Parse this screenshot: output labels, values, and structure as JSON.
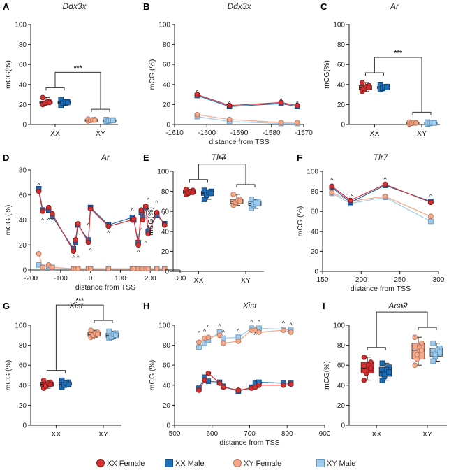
{
  "colors": {
    "xx_female": "#d32f2f",
    "xx_male": "#1e6eb8",
    "xy_female": "#f2a98a",
    "xy_male": "#9fcbec",
    "axis": "#222222"
  },
  "legend": {
    "entries": [
      {
        "label": "XX Female",
        "shape": "circle",
        "color": "#d32f2f"
      },
      {
        "label": "XX Male",
        "shape": "square",
        "color": "#1e6eb8"
      },
      {
        "label": "XY Female",
        "shape": "circle",
        "color": "#f2a98a"
      },
      {
        "label": "XY Male",
        "shape": "square",
        "color": "#9fcbec"
      }
    ]
  },
  "chart_data": [
    {
      "id": "A",
      "panel_label": "A",
      "type": "box",
      "title": "Ddx3x",
      "ylabel": "mCG(%)",
      "xlabel": "",
      "ylim": [
        0,
        100
      ],
      "yticks": [
        0,
        20,
        40,
        60,
        80,
        100
      ],
      "categories": [
        "XX",
        "XY"
      ],
      "groups": [
        {
          "cat": "XX",
          "series": "xx_female",
          "median": 22,
          "q1": 21,
          "q3": 23,
          "min": 20,
          "max": 27
        },
        {
          "cat": "XX",
          "series": "xx_male",
          "median": 22,
          "q1": 21,
          "q3": 23,
          "min": 19,
          "max": 25
        },
        {
          "cat": "XY",
          "series": "xy_female",
          "median": 4.5,
          "q1": 4,
          "q3": 5,
          "min": 3.5,
          "max": 5.5
        },
        {
          "cat": "XY",
          "series": "xy_male",
          "median": 4,
          "q1": 3.5,
          "q3": 4.5,
          "min": 3,
          "max": 5
        }
      ],
      "significance": "***"
    },
    {
      "id": "B",
      "panel_label": "B",
      "type": "line",
      "title": "Ddx3x",
      "ylabel": "mCG (%)",
      "xlabel": "distance from TSS",
      "xlim": [
        -1610,
        -1570
      ],
      "xticks": [
        -1610,
        -1600,
        -1590,
        -1580,
        -1570
      ],
      "ylim": [
        0,
        100
      ],
      "yticks": [
        0,
        20,
        40,
        60,
        80,
        100
      ],
      "x": [
        -1603,
        -1593,
        -1577,
        -1572
      ],
      "series": [
        {
          "name": "XX Female",
          "key": "xx_female",
          "values": [
            30,
            19,
            22,
            19
          ]
        },
        {
          "name": "XX Male",
          "key": "xx_male",
          "values": [
            29,
            18,
            21,
            18
          ]
        },
        {
          "name": "XY Female",
          "key": "xy_female",
          "values": [
            10,
            5,
            2,
            2
          ]
        },
        {
          "name": "XY Male",
          "key": "xy_male",
          "values": [
            8,
            3,
            1,
            1
          ]
        }
      ],
      "markers": [
        {
          "x": -1603,
          "y": 30
        },
        {
          "x": -1593,
          "y": 19
        },
        {
          "x": -1577,
          "y": 22
        },
        {
          "x": -1572,
          "y": 19
        }
      ],
      "marker_symbol": "^"
    },
    {
      "id": "C",
      "panel_label": "C",
      "type": "box",
      "title": "Ar",
      "ylabel": "mCG(%)",
      "xlabel": "",
      "ylim": [
        0,
        100
      ],
      "yticks": [
        0,
        20,
        40,
        60,
        80,
        100
      ],
      "categories": [
        "XX",
        "XY"
      ],
      "groups": [
        {
          "cat": "XX",
          "series": "xx_female",
          "median": 37,
          "q1": 35,
          "q3": 39,
          "min": 33,
          "max": 42
        },
        {
          "cat": "XX",
          "series": "xx_male",
          "median": 37,
          "q1": 36,
          "q3": 38,
          "min": 35,
          "max": 40
        },
        {
          "cat": "XY",
          "series": "xy_female",
          "median": 1.5,
          "q1": 1,
          "q3": 2,
          "min": 0.5,
          "max": 2.5
        },
        {
          "cat": "XY",
          "series": "xy_male",
          "median": 1.5,
          "q1": 1,
          "q3": 2,
          "min": 0.5,
          "max": 2.5
        }
      ],
      "significance": "***"
    },
    {
      "id": "D",
      "panel_label": "D",
      "type": "line",
      "title": "Ar",
      "ylabel": "mCG (%)",
      "xlabel": "distance from TSS",
      "xlim": [
        -200,
        300
      ],
      "xticks": [
        -200,
        -100,
        0,
        100,
        200,
        300
      ],
      "ylim": [
        0,
        80
      ],
      "yticks": [
        0,
        20,
        40,
        60,
        80
      ],
      "x": [
        -173,
        -160,
        -140,
        -128,
        -57,
        -50,
        -42,
        -7,
        0,
        60,
        140,
        145,
        160,
        170,
        175,
        185,
        193,
        222,
        248
      ],
      "series": [
        {
          "name": "XX Female",
          "key": "xx_female",
          "values": [
            63,
            47,
            50,
            45,
            15,
            24,
            37,
            22,
            49,
            35,
            40,
            41,
            20,
            48,
            40,
            51,
            29,
            46,
            36
          ]
        },
        {
          "name": "XX Male",
          "key": "xx_male",
          "values": [
            65,
            48,
            48,
            43,
            17,
            22,
            36,
            24,
            50,
            36,
            42,
            40,
            22,
            46,
            42,
            50,
            31,
            44,
            37
          ]
        },
        {
          "name": "XY Female",
          "key": "xy_female",
          "values": [
            13,
            2,
            4,
            2,
            1,
            1,
            1,
            1,
            1,
            1,
            1,
            1,
            1,
            1,
            1,
            1,
            1,
            1,
            1
          ]
        },
        {
          "name": "XY Male",
          "key": "xy_male",
          "values": [
            4,
            2,
            3,
            2,
            1,
            1,
            1,
            1,
            1,
            1,
            1,
            1,
            1,
            1,
            1,
            1,
            1,
            1,
            1
          ]
        }
      ],
      "markers": [
        {
          "x": -173,
          "y": 66
        },
        {
          "x": -160,
          "y": 38
        },
        {
          "x": -140,
          "y": 38
        },
        {
          "x": -128,
          "y": 38
        },
        {
          "x": -57,
          "y": 8
        },
        {
          "x": -42,
          "y": 8
        },
        {
          "x": -7,
          "y": 34
        },
        {
          "x": 0,
          "y": 14
        },
        {
          "x": 60,
          "y": 28
        },
        {
          "x": 140,
          "y": 46
        },
        {
          "x": 160,
          "y": 13
        },
        {
          "x": 170,
          "y": 30
        },
        {
          "x": 185,
          "y": 20
        },
        {
          "x": 193,
          "y": 54
        },
        {
          "x": 222,
          "y": 52
        },
        {
          "x": 248,
          "y": 42
        }
      ],
      "marker_symbol": "^"
    },
    {
      "id": "E",
      "panel_label": "E",
      "type": "box",
      "title": "Tlr7",
      "ylabel": "mCG(%)",
      "xlabel": "",
      "ylim": [
        0,
        100
      ],
      "yticks": [
        0,
        20,
        40,
        60,
        80,
        100
      ],
      "categories": [
        "XX",
        "XY"
      ],
      "groups": [
        {
          "cat": "XX",
          "series": "xx_female",
          "median": 79,
          "q1": 78,
          "q3": 81,
          "min": 77,
          "max": 82
        },
        {
          "cat": "XX",
          "series": "xx_male",
          "median": 78,
          "q1": 76,
          "q3": 80,
          "min": 72,
          "max": 81
        },
        {
          "cat": "XY",
          "series": "xy_female",
          "median": 70,
          "q1": 68,
          "q3": 72,
          "min": 66,
          "max": 77
        },
        {
          "cat": "XY",
          "series": "xy_male",
          "median": 68,
          "q1": 66,
          "q3": 70,
          "min": 63,
          "max": 72
        }
      ],
      "significance": "***"
    },
    {
      "id": "F",
      "panel_label": "F",
      "type": "line",
      "title": "Tlr7",
      "ylabel": "mCG (%)",
      "xlabel": "distance from TSS",
      "xlim": [
        150,
        300
      ],
      "xticks": [
        150,
        200,
        250,
        300
      ],
      "ylim": [
        0,
        100
      ],
      "yticks": [
        0,
        20,
        40,
        60,
        80,
        100
      ],
      "x": [
        162,
        186,
        231,
        290
      ],
      "series": [
        {
          "name": "XX Female",
          "key": "xx_female",
          "values": [
            85,
            71,
            87,
            69
          ]
        },
        {
          "name": "XX Male",
          "key": "xx_male",
          "values": [
            84,
            69,
            86,
            70
          ]
        },
        {
          "name": "XY Female",
          "key": "xy_female",
          "values": [
            79,
            70,
            75,
            55
          ]
        },
        {
          "name": "XY Male",
          "key": "xy_male",
          "values": [
            78,
            68,
            74,
            50
          ]
        }
      ],
      "markers": [
        {
          "x": 162,
          "y": 89
        },
        {
          "x": 231,
          "y": 90
        },
        {
          "x": 290,
          "y": 73
        }
      ],
      "marker_symbol": "^",
      "annotations": [
        {
          "text": "n.s.",
          "x": 186,
          "y": 74
        }
      ]
    },
    {
      "id": "G",
      "panel_label": "G",
      "type": "box",
      "title": "Xist",
      "ylabel": "mCG (%)",
      "xlabel": "",
      "ylim": [
        0,
        100
      ],
      "yticks": [
        0,
        20,
        40,
        60,
        80,
        100
      ],
      "categories": [
        "XX",
        "XY"
      ],
      "groups": [
        {
          "cat": "XX",
          "series": "xx_female",
          "median": 41,
          "q1": 39,
          "q3": 43,
          "min": 37,
          "max": 45
        },
        {
          "cat": "XX",
          "series": "xx_male",
          "median": 41,
          "q1": 40,
          "q3": 43,
          "min": 38,
          "max": 45
        },
        {
          "cat": "XY",
          "series": "xy_female",
          "median": 91,
          "q1": 89,
          "q3": 93,
          "min": 88,
          "max": 95
        },
        {
          "cat": "XY",
          "series": "xy_male",
          "median": 90,
          "q1": 88,
          "q3": 92,
          "min": 87,
          "max": 94
        }
      ],
      "significance": "***"
    },
    {
      "id": "H",
      "panel_label": "H",
      "type": "line",
      "title": "Xist",
      "ylabel": "mCG (%)",
      "xlabel": "distance from TSS",
      "xlim": [
        500,
        900
      ],
      "xticks": [
        500,
        600,
        700,
        800,
        900
      ],
      "ylim": [
        0,
        100
      ],
      "yticks": [
        0,
        20,
        40,
        60,
        80,
        100
      ],
      "x": [
        565,
        580,
        590,
        620,
        630,
        670,
        705,
        715,
        725,
        790,
        810
      ],
      "series": [
        {
          "name": "XX Female",
          "key": "xx_female",
          "values": [
            35,
            45,
            52,
            42,
            38,
            35,
            37,
            38,
            40,
            40,
            41
          ]
        },
        {
          "name": "XX Male",
          "key": "xx_male",
          "values": [
            37,
            48,
            44,
            43,
            39,
            34,
            38,
            42,
            43,
            42,
            42
          ]
        },
        {
          "name": "XY Female",
          "key": "xy_female",
          "values": [
            83,
            87,
            88,
            90,
            82,
            84,
            95,
            95,
            93,
            95,
            93
          ]
        },
        {
          "name": "XY Male",
          "key": "xy_male",
          "values": [
            78,
            82,
            85,
            93,
            87,
            88,
            97,
            96,
            97,
            96,
            95
          ]
        }
      ],
      "markers": [
        {
          "x": 565,
          "y": 90
        },
        {
          "x": 580,
          "y": 92
        },
        {
          "x": 590,
          "y": 96
        },
        {
          "x": 620,
          "y": 97
        },
        {
          "x": 630,
          "y": 91
        },
        {
          "x": 670,
          "y": 92
        },
        {
          "x": 705,
          "y": 101
        },
        {
          "x": 715,
          "y": 88
        },
        {
          "x": 725,
          "y": 101
        },
        {
          "x": 790,
          "y": 100
        },
        {
          "x": 810,
          "y": 98
        }
      ],
      "marker_symbol": "^"
    },
    {
      "id": "I",
      "panel_label": "I",
      "type": "box",
      "title": "Ace2",
      "ylabel": "mCG(%)",
      "xlabel": "",
      "ylim": [
        0,
        100
      ],
      "yticks": [
        0,
        20,
        40,
        60,
        80,
        100
      ],
      "categories": [
        "XX",
        "XY"
      ],
      "groups": [
        {
          "cat": "XX",
          "series": "xx_female",
          "median": 57,
          "q1": 52,
          "q3": 63,
          "min": 45,
          "max": 68
        },
        {
          "cat": "XX",
          "series": "xx_male",
          "median": 53,
          "q1": 49,
          "q3": 58,
          "min": 45,
          "max": 62
        },
        {
          "cat": "XY",
          "series": "xy_female",
          "median": 75,
          "q1": 66,
          "q3": 82,
          "min": 60,
          "max": 88
        },
        {
          "cat": "XY",
          "series": "xy_male",
          "median": 73,
          "q1": 69,
          "q3": 77,
          "min": 64,
          "max": 82
        }
      ],
      "significance": "***"
    }
  ]
}
